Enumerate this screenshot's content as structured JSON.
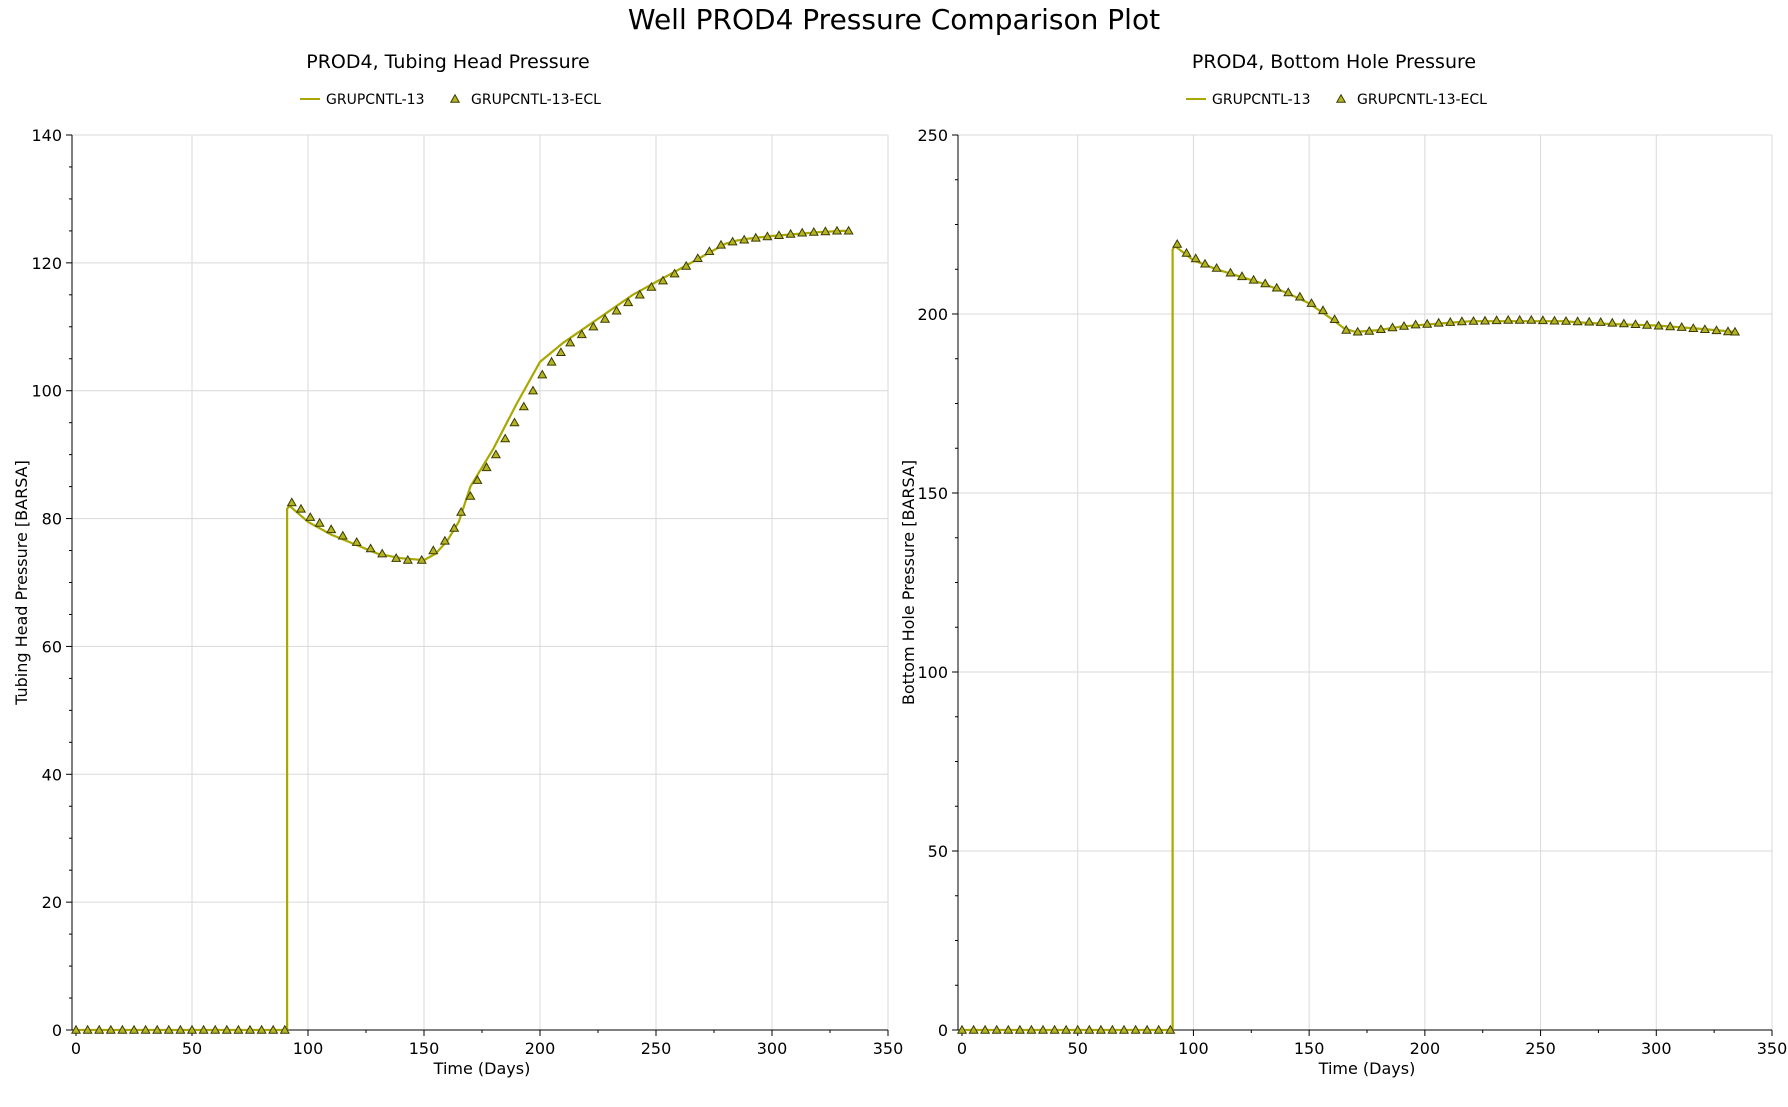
{
  "page_title": "Well PROD4 Pressure Comparison Plot",
  "colors": {
    "line": "#a8a800",
    "marker_fill": "#b5b522",
    "marker_stroke": "#3a3a00",
    "grid": "#d9d9d9",
    "axis": "#000000"
  },
  "chart_data": [
    {
      "type": "line",
      "title": "PROD4, Tubing Head Pressure",
      "xlabel": "Time (Days)",
      "ylabel": "Tubing Head Pressure [BARSA]",
      "xlim": [
        0,
        350
      ],
      "ylim": [
        0,
        140
      ],
      "xticks": [
        0,
        50,
        100,
        150,
        200,
        250,
        300,
        350
      ],
      "yticks": [
        0,
        20,
        40,
        60,
        80,
        100,
        120,
        140
      ],
      "grid": true,
      "legend_position": "top-center",
      "series": [
        {
          "name": "GRUPCNTL-13",
          "style": "line",
          "x": [
            0,
            91,
            91,
            92,
            100,
            110,
            120,
            130,
            140,
            150,
            155,
            160,
            165,
            170,
            180,
            190,
            200,
            210,
            220,
            230,
            240,
            250,
            260,
            270,
            280,
            285,
            290,
            300,
            310,
            320,
            330,
            334
          ],
          "y": [
            0,
            0,
            81.5,
            82,
            79.5,
            77.5,
            76.0,
            74.5,
            73.8,
            73.5,
            74.5,
            76.5,
            79.5,
            85,
            91,
            98,
            104.5,
            107.5,
            110,
            112.5,
            115,
            117,
            119,
            121,
            123,
            123.5,
            123.8,
            124.2,
            124.5,
            124.8,
            125,
            125
          ]
        },
        {
          "name": "GRUPCNTL-13-ECL",
          "style": "markers",
          "x": [
            0,
            5,
            10,
            15,
            20,
            25,
            30,
            35,
            40,
            45,
            50,
            55,
            60,
            65,
            70,
            75,
            80,
            85,
            90,
            93,
            97,
            101,
            105,
            110,
            115,
            121,
            127,
            132,
            138,
            143,
            149,
            154,
            159,
            163,
            166,
            170,
            173,
            177,
            181,
            185,
            189,
            193,
            197,
            201,
            205,
            209,
            213,
            218,
            223,
            228,
            233,
            238,
            243,
            248,
            253,
            258,
            263,
            268,
            273,
            278,
            283,
            288,
            293,
            298,
            303,
            308,
            313,
            318,
            323,
            328,
            333
          ],
          "y": [
            0,
            0,
            0,
            0,
            0,
            0,
            0,
            0,
            0,
            0,
            0,
            0,
            0,
            0,
            0,
            0,
            0,
            0,
            0,
            82.5,
            81.5,
            80.2,
            79.3,
            78.3,
            77.3,
            76.3,
            75.3,
            74.5,
            73.8,
            73.5,
            73.5,
            75,
            76.5,
            78.5,
            81,
            83.5,
            86,
            88,
            90,
            92.5,
            95,
            97.5,
            100,
            102.5,
            104.5,
            106,
            107.5,
            108.8,
            110,
            111.2,
            112.5,
            113.8,
            115,
            116.2,
            117.2,
            118.3,
            119.5,
            120.7,
            121.8,
            122.8,
            123.3,
            123.6,
            123.9,
            124.1,
            124.3,
            124.5,
            124.7,
            124.8,
            124.9,
            125,
            125
          ]
        }
      ]
    },
    {
      "type": "line",
      "title": "PROD4, Bottom Hole Pressure",
      "xlabel": "Time (Days)",
      "ylabel": "Bottom Hole Pressure [BARSA]",
      "xlim": [
        0,
        350
      ],
      "ylim": [
        0,
        250
      ],
      "xticks": [
        0,
        50,
        100,
        150,
        200,
        250,
        300,
        350
      ],
      "yticks": [
        0,
        50,
        100,
        150,
        200,
        250
      ],
      "grid": true,
      "legend_position": "top-center",
      "series": [
        {
          "name": "GRUPCNTL-13",
          "style": "line",
          "x": [
            0,
            91,
            91,
            92,
            100,
            110,
            120,
            130,
            140,
            150,
            160,
            165,
            170,
            180,
            190,
            200,
            210,
            220,
            230,
            240,
            250,
            260,
            270,
            280,
            290,
            300,
            310,
            320,
            334
          ],
          "y": [
            0,
            0,
            218,
            219,
            215,
            212.5,
            210.5,
            208.5,
            206,
            203,
            198.5,
            196,
            195,
            195.5,
            196.5,
            197,
            197.5,
            198,
            198,
            198,
            198,
            198,
            197.5,
            197.2,
            197,
            196.8,
            196.3,
            195.8,
            195
          ]
        },
        {
          "name": "GRUPCNTL-13-ECL",
          "style": "markers",
          "x": [
            0,
            5,
            10,
            15,
            20,
            25,
            30,
            35,
            40,
            45,
            50,
            55,
            60,
            65,
            70,
            75,
            80,
            85,
            90,
            93,
            97,
            101,
            105,
            110,
            116,
            121,
            126,
            131,
            136,
            141,
            146,
            151,
            156,
            161,
            166,
            171,
            176,
            181,
            186,
            191,
            196,
            201,
            206,
            211,
            216,
            221,
            226,
            231,
            236,
            241,
            246,
            251,
            256,
            261,
            266,
            271,
            276,
            281,
            286,
            291,
            296,
            301,
            306,
            311,
            316,
            321,
            326,
            331,
            334
          ],
          "y": [
            0,
            0,
            0,
            0,
            0,
            0,
            0,
            0,
            0,
            0,
            0,
            0,
            0,
            0,
            0,
            0,
            0,
            0,
            0,
            219.5,
            217,
            215.5,
            214,
            212.8,
            211.5,
            210.5,
            209.5,
            208.5,
            207.3,
            206,
            204.8,
            203,
            201,
            198.5,
            195.5,
            195,
            195.2,
            195.7,
            196.2,
            196.6,
            197,
            197.2,
            197.5,
            197.7,
            197.9,
            198,
            198.1,
            198.2,
            198.3,
            198.3,
            198.3,
            198.2,
            198.1,
            198,
            197.9,
            197.8,
            197.7,
            197.5,
            197.3,
            197.1,
            196.9,
            196.7,
            196.5,
            196.3,
            196,
            195.7,
            195.4,
            195.1,
            195
          ]
        }
      ]
    }
  ]
}
